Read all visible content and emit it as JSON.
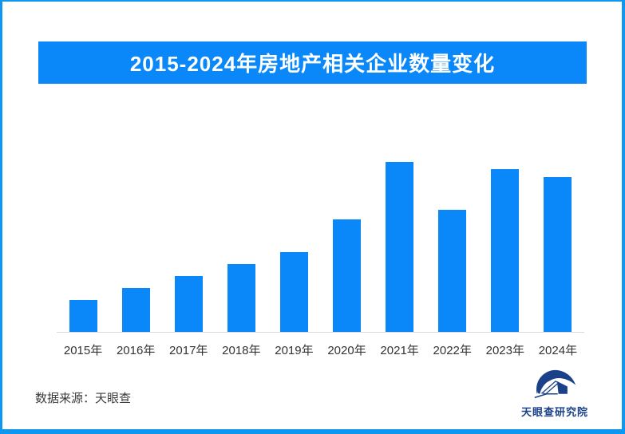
{
  "page": {
    "background": "#FFFFFF",
    "border_color": "#0D97F0"
  },
  "banner": {
    "title": "2015-2024年房地产相关企业数量变化",
    "bg_color": "#0A87F8",
    "text_color": "#FFFFFF"
  },
  "chart_data": {
    "type": "bar",
    "title": "2015-2024年房地产相关企业数量变化",
    "categories": [
      "2015年",
      "2016年",
      "2017年",
      "2018年",
      "2019年",
      "2020年",
      "2021年",
      "2022年",
      "2023年",
      "2024年"
    ],
    "values": [
      19,
      26,
      33,
      40,
      47,
      66,
      100,
      72,
      96,
      91
    ],
    "value_scale": "relative units estimated from bar heights; tallest bar (2021) = 100; no numeric axis or data labels are shown",
    "xlabel": "",
    "ylabel": "",
    "ylim": [
      0,
      110
    ],
    "grid": false,
    "legend": false,
    "bar_color": "#0A87F8",
    "baseline_color": "#D9D9D9",
    "tick_label_color": "#333333"
  },
  "footer": {
    "source": "数据来源：天眼查"
  },
  "logo": {
    "text": "天眼查研究院",
    "color": "#1B4289",
    "icon": "tianyancha-eye-house-icon"
  }
}
